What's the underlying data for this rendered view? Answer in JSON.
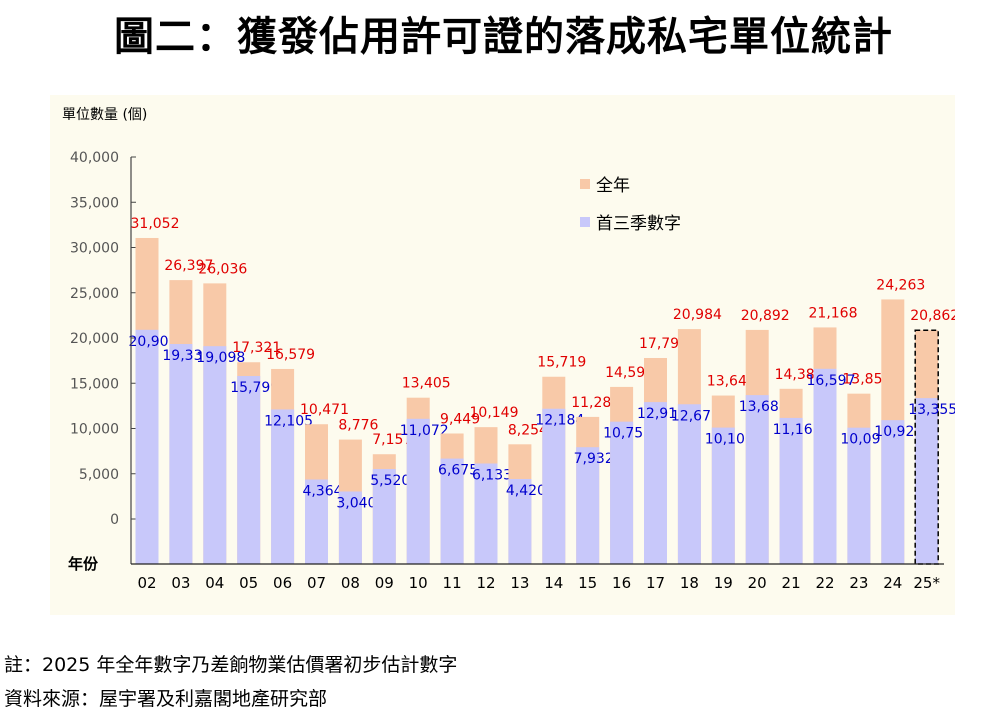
{
  "title": "圖二：獲發佔用許可證的落成私宅單位統計",
  "notes": {
    "note": "註：2025 年全年數字乃差餉物業估價署初步估計數字",
    "source": "資料來源：屋宇署及利嘉閣地產研究部"
  },
  "chart_data": {
    "type": "bar",
    "title": "圖二：獲發佔用許可證的落成私宅單位統計",
    "ylabel": "單位數量 (個)",
    "xlabel": "年份",
    "ylim": [
      0,
      40000
    ],
    "yticks": [
      "40,000",
      "35,000",
      "30,000",
      "25,000",
      "20,000",
      "15,000",
      "10,000",
      "5,000",
      "0"
    ],
    "ytick_values": [
      40000,
      35000,
      30000,
      25000,
      20000,
      15000,
      10000,
      5000,
      0
    ],
    "categories": [
      "02",
      "03",
      "04",
      "05",
      "06",
      "07",
      "08",
      "09",
      "10",
      "11",
      "12",
      "13",
      "14",
      "15",
      "16",
      "17",
      "18",
      "19",
      "20",
      "21",
      "22",
      "23",
      "24",
      "25*"
    ],
    "legend_position": "top-center",
    "series": [
      {
        "name": "全年",
        "color": "#f8c9a8",
        "label_color": "#e00000",
        "values": [
          31052,
          26397,
          26036,
          17321,
          16579,
          10471,
          8776,
          7157,
          13405,
          9449,
          10149,
          8254,
          15719,
          11280,
          14594,
          17791,
          20984,
          13641,
          20892,
          14387,
          21168,
          13851,
          24263,
          20862
        ],
        "labels": [
          "31,052",
          "26,397",
          "26,036",
          "17,321",
          "16,579",
          "10,471",
          "8,776",
          "7,157",
          "13,405",
          "9,449",
          "10,149",
          "8,254",
          "15,719",
          "11,280",
          "14,594",
          "17,791",
          "20,984",
          "13,641",
          "20,892",
          "14,387",
          "21,168",
          "13,851",
          "24,263",
          "20,862"
        ]
      },
      {
        "name": "首三季數字",
        "color": "#c8c8fa",
        "label_color": "#0000cc",
        "values": [
          20907,
          19335,
          19098,
          15799,
          12105,
          4364,
          3040,
          5520,
          11072,
          6675,
          6133,
          4420,
          12184,
          7932,
          10755,
          12917,
          12677,
          10100,
          13688,
          11169,
          16597,
          10090,
          10923,
          13355
        ],
        "labels": [
          "20,907",
          "19,335",
          "19,098",
          "15,799",
          "12,105",
          "4,364",
          "3,040",
          "5,520",
          "11,072",
          "6,675",
          "6,133",
          "4,420",
          "12,184",
          "7,932",
          "10,755",
          "12,917",
          "12,677",
          "10,100",
          "13,688",
          "11,169",
          "16,597",
          "10,090",
          "10,923",
          "13,355"
        ]
      }
    ],
    "highlighted_category": "25*"
  }
}
